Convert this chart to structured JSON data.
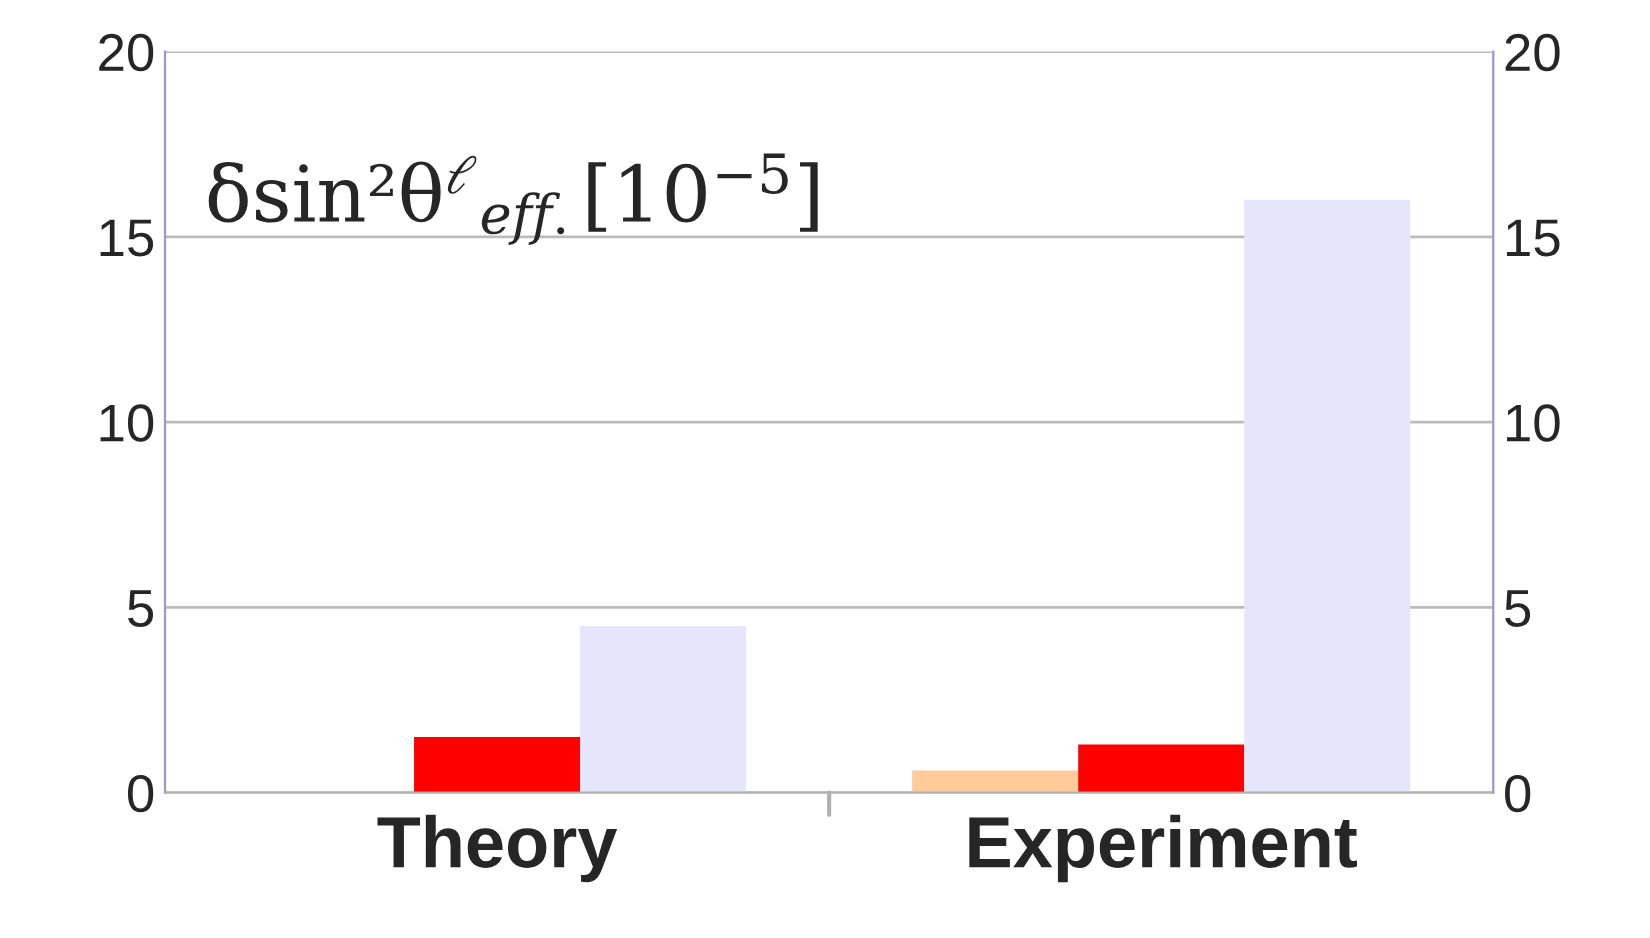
{
  "chart_data": {
    "type": "bar",
    "categories": [
      "Theory",
      "Experiment"
    ],
    "series": [
      {
        "color": "#ffcc99",
        "values": [
          null,
          0.6
        ]
      },
      {
        "color": "#ff0000",
        "values": [
          1.5,
          1.3
        ]
      },
      {
        "color": "#e5e5fb",
        "values": [
          4.5,
          16
        ]
      }
    ],
    "ylim": [
      0,
      20
    ],
    "yticks": [
      0,
      5,
      10,
      15,
      20
    ],
    "y2lim": [
      0,
      20
    ],
    "y2ticks": [
      0,
      5,
      10,
      15,
      20
    ],
    "grid": "y",
    "legend": false,
    "annotations": [
      "δsin²θ$^{ℓ}$$_{eff.}$[10$^{−5}$]"
    ]
  }
}
